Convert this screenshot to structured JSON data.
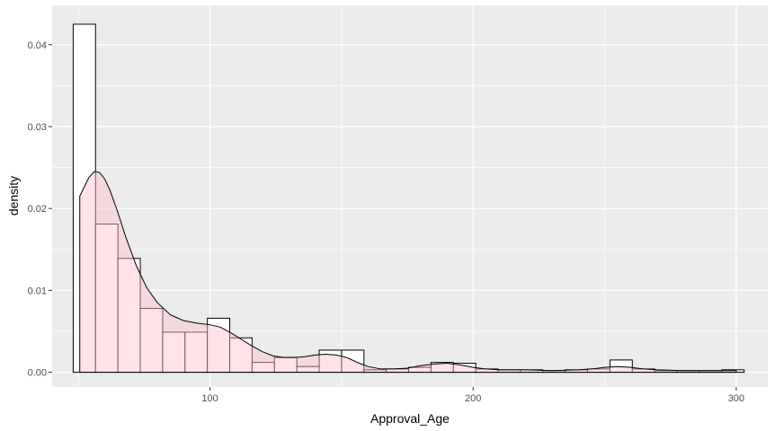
{
  "chart_data": {
    "type": "histogram",
    "xlabel": "Approval_Age",
    "ylabel": "density",
    "xlim": [
      40,
      312
    ],
    "ylim": [
      -0.0018,
      0.0448
    ],
    "x_ticks": [
      100,
      200,
      300
    ],
    "x_tick_labels": [
      "100",
      "200",
      "300"
    ],
    "y_ticks": [
      0.0,
      0.01,
      0.02,
      0.03,
      0.04
    ],
    "y_tick_labels": [
      "0.00",
      "0.01",
      "0.02",
      "0.03",
      "0.04"
    ],
    "x_minor_ticks": [
      50,
      150,
      250
    ],
    "y_minor_ticks": [
      0.005,
      0.015,
      0.025,
      0.035
    ],
    "grid": true,
    "histogram": {
      "bins": [
        {
          "x0": 48.0,
          "x1": 56.5,
          "density": 0.0425
        },
        {
          "x0": 56.5,
          "x1": 65.0,
          "density": 0.0181
        },
        {
          "x0": 65.0,
          "x1": 73.5,
          "density": 0.0139
        },
        {
          "x0": 73.5,
          "x1": 82.0,
          "density": 0.0078
        },
        {
          "x0": 82.0,
          "x1": 90.5,
          "density": 0.0049
        },
        {
          "x0": 90.5,
          "x1": 99.0,
          "density": 0.0049
        },
        {
          "x0": 99.0,
          "x1": 107.5,
          "density": 0.0066
        },
        {
          "x0": 107.5,
          "x1": 116.0,
          "density": 0.0042
        },
        {
          "x0": 116.0,
          "x1": 124.5,
          "density": 0.0012
        },
        {
          "x0": 124.5,
          "x1": 133.0,
          "density": 0.0018
        },
        {
          "x0": 133.0,
          "x1": 141.5,
          "density": 0.0007
        },
        {
          "x0": 141.5,
          "x1": 150.0,
          "density": 0.0027
        },
        {
          "x0": 150.0,
          "x1": 158.5,
          "density": 0.0027
        },
        {
          "x0": 158.5,
          "x1": 167.0,
          "density": 0.0003
        },
        {
          "x0": 167.0,
          "x1": 175.5,
          "density": 0.0004
        },
        {
          "x0": 175.5,
          "x1": 184.0,
          "density": 0.0006
        },
        {
          "x0": 184.0,
          "x1": 192.5,
          "density": 0.0012
        },
        {
          "x0": 192.5,
          "x1": 201.0,
          "density": 0.0011
        },
        {
          "x0": 201.0,
          "x1": 209.5,
          "density": 0.0004
        },
        {
          "x0": 209.5,
          "x1": 218.0,
          "density": 0.0003
        },
        {
          "x0": 218.0,
          "x1": 226.5,
          "density": 0.0003
        },
        {
          "x0": 226.5,
          "x1": 235.0,
          "density": 0.0002
        },
        {
          "x0": 235.0,
          "x1": 243.5,
          "density": 0.0003
        },
        {
          "x0": 243.5,
          "x1": 252.0,
          "density": 0.0004
        },
        {
          "x0": 252.0,
          "x1": 260.5,
          "density": 0.0015
        },
        {
          "x0": 260.5,
          "x1": 269.0,
          "density": 0.0004
        },
        {
          "x0": 269.0,
          "x1": 277.5,
          "density": 0.0002
        },
        {
          "x0": 277.5,
          "x1": 286.0,
          "density": 0.0002
        },
        {
          "x0": 286.0,
          "x1": 294.5,
          "density": 0.0002
        },
        {
          "x0": 294.5,
          "x1": 303.0,
          "density": 0.0003
        }
      ],
      "fill": "#ffffff",
      "stroke": "#000000"
    },
    "density_curve": {
      "points": [
        [
          50.5,
          0.0215
        ],
        [
          52,
          0.0225
        ],
        [
          54,
          0.0238
        ],
        [
          56,
          0.0245
        ],
        [
          58,
          0.0244
        ],
        [
          60,
          0.0236
        ],
        [
          62,
          0.0222
        ],
        [
          65,
          0.0195
        ],
        [
          68,
          0.0165
        ],
        [
          72,
          0.013
        ],
        [
          76,
          0.0103
        ],
        [
          80,
          0.0085
        ],
        [
          85,
          0.007
        ],
        [
          90,
          0.0063
        ],
        [
          95,
          0.006
        ],
        [
          100,
          0.0058
        ],
        [
          104,
          0.0055
        ],
        [
          108,
          0.0048
        ],
        [
          112,
          0.004
        ],
        [
          116,
          0.0032
        ],
        [
          120,
          0.0025
        ],
        [
          124,
          0.002
        ],
        [
          128,
          0.0018
        ],
        [
          132,
          0.0018
        ],
        [
          136,
          0.0019
        ],
        [
          140,
          0.0021
        ],
        [
          144,
          0.0022
        ],
        [
          148,
          0.0021
        ],
        [
          152,
          0.0018
        ],
        [
          156,
          0.0012
        ],
        [
          160,
          0.0007
        ],
        [
          165,
          0.0004
        ],
        [
          170,
          0.0004
        ],
        [
          175,
          0.0005
        ],
        [
          180,
          0.0008
        ],
        [
          185,
          0.001
        ],
        [
          190,
          0.0011
        ],
        [
          195,
          0.0009
        ],
        [
          200,
          0.0006
        ],
        [
          205,
          0.0004
        ],
        [
          210,
          0.0003
        ],
        [
          220,
          0.0003
        ],
        [
          230,
          0.0002
        ],
        [
          240,
          0.0003
        ],
        [
          245,
          0.0004
        ],
        [
          250,
          0.0006
        ],
        [
          255,
          0.0007
        ],
        [
          260,
          0.0006
        ],
        [
          265,
          0.0004
        ],
        [
          270,
          0.0003
        ],
        [
          280,
          0.0002
        ],
        [
          290,
          0.0002
        ],
        [
          300,
          0.0002
        ]
      ],
      "fill": "#ffc0cb",
      "fill_opacity": 0.45,
      "stroke": "#000000"
    },
    "panel_background": "#ebebeb",
    "grid_color": "#ffffff"
  }
}
